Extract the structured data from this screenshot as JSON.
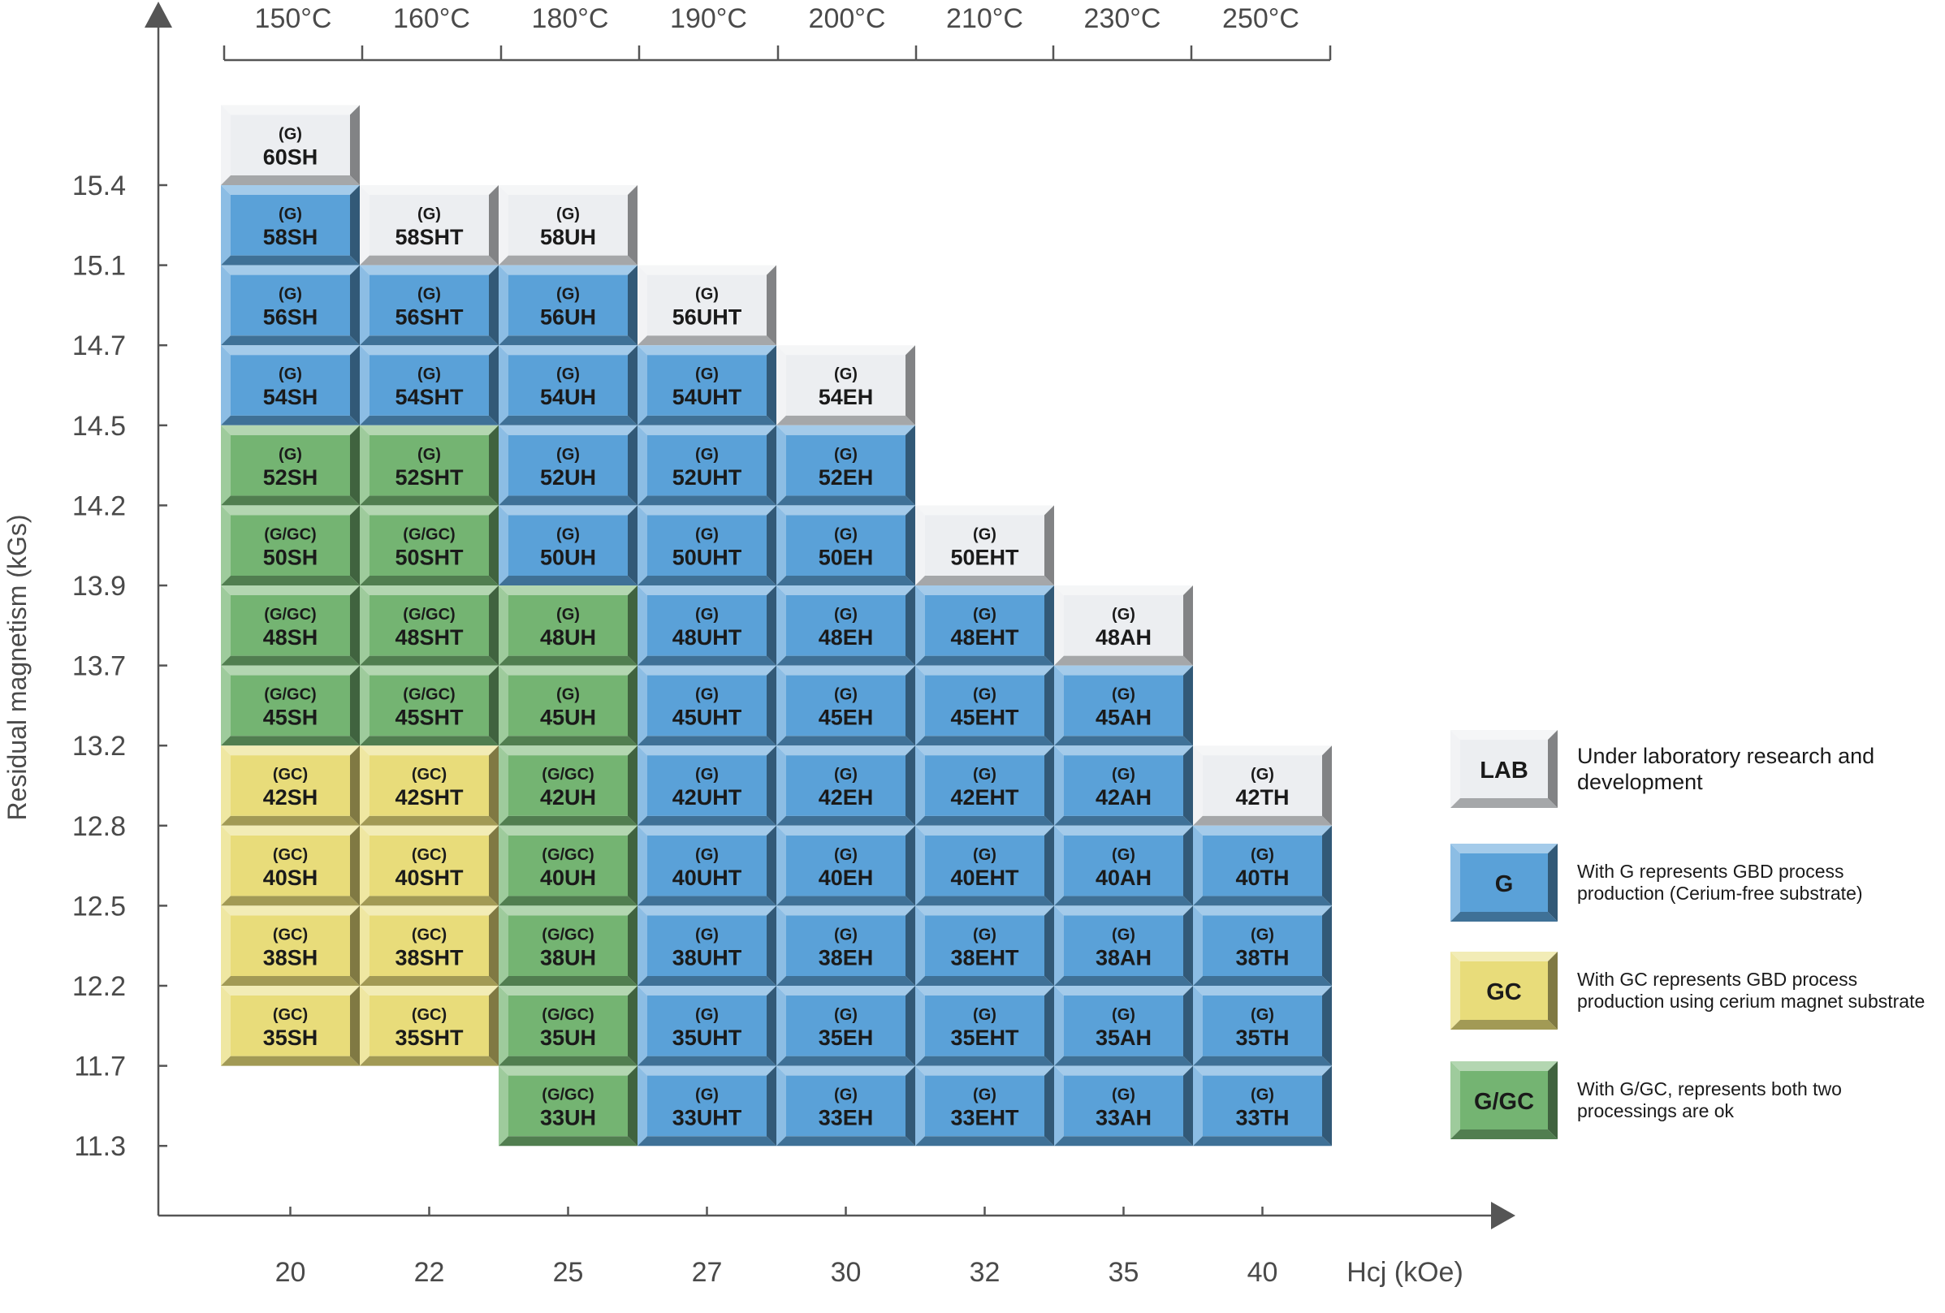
{
  "chart_data": {
    "type": "heatmap",
    "xlabel": "Hcj (kOe)",
    "ylabel": "Residual magnetism (kGs)",
    "x": [
      "20",
      "22",
      "25",
      "27",
      "30",
      "32",
      "35",
      "40"
    ],
    "temperatures": [
      "150°C",
      "160°C",
      "180°C",
      "190°C",
      "200°C",
      "210°C",
      "230°C",
      "250°C"
    ],
    "y": [
      "15.4",
      "15.1",
      "14.7",
      "14.5",
      "14.2",
      "13.9",
      "13.7",
      "13.2",
      "12.8",
      "12.5",
      "12.2",
      "11.7",
      "11.3"
    ],
    "colors": {
      "LAB": "#eceef1",
      "G": "#5aa1d8",
      "GC": "#e8dc7a",
      "G/GC": "#74b472"
    },
    "columns": [
      {
        "hcj": "20",
        "temp": "150°C",
        "cells": [
          {
            "row": 0,
            "proc": "(G)",
            "grade": "60SH",
            "type": "LAB"
          },
          {
            "row": 1,
            "proc": "(G)",
            "grade": "58SH",
            "type": "G"
          },
          {
            "row": 2,
            "proc": "(G)",
            "grade": "56SH",
            "type": "G"
          },
          {
            "row": 3,
            "proc": "(G)",
            "grade": "54SH",
            "type": "G"
          },
          {
            "row": 4,
            "proc": "(G)",
            "grade": "52SH",
            "type": "G/GC"
          },
          {
            "row": 5,
            "proc": "(G/GC)",
            "grade": "50SH",
            "type": "G/GC"
          },
          {
            "row": 6,
            "proc": "(G/GC)",
            "grade": "48SH",
            "type": "G/GC"
          },
          {
            "row": 7,
            "proc": "(G/GC)",
            "grade": "45SH",
            "type": "G/GC"
          },
          {
            "row": 8,
            "proc": "(GC)",
            "grade": "42SH",
            "type": "GC"
          },
          {
            "row": 9,
            "proc": "(GC)",
            "grade": "40SH",
            "type": "GC"
          },
          {
            "row": 10,
            "proc": "(GC)",
            "grade": "38SH",
            "type": "GC"
          },
          {
            "row": 11,
            "proc": "(GC)",
            "grade": "35SH",
            "type": "GC"
          }
        ]
      },
      {
        "hcj": "22",
        "temp": "160°C",
        "cells": [
          {
            "row": 1,
            "proc": "(G)",
            "grade": "58SHT",
            "type": "LAB"
          },
          {
            "row": 2,
            "proc": "(G)",
            "grade": "56SHT",
            "type": "G"
          },
          {
            "row": 3,
            "proc": "(G)",
            "grade": "54SHT",
            "type": "G"
          },
          {
            "row": 4,
            "proc": "(G)",
            "grade": "52SHT",
            "type": "G/GC"
          },
          {
            "row": 5,
            "proc": "(G/GC)",
            "grade": "50SHT",
            "type": "G/GC"
          },
          {
            "row": 6,
            "proc": "(G/GC)",
            "grade": "48SHT",
            "type": "G/GC"
          },
          {
            "row": 7,
            "proc": "(G/GC)",
            "grade": "45SHT",
            "type": "G/GC"
          },
          {
            "row": 8,
            "proc": "(GC)",
            "grade": "42SHT",
            "type": "GC"
          },
          {
            "row": 9,
            "proc": "(GC)",
            "grade": "40SHT",
            "type": "GC"
          },
          {
            "row": 10,
            "proc": "(GC)",
            "grade": "38SHT",
            "type": "GC"
          },
          {
            "row": 11,
            "proc": "(GC)",
            "grade": "35SHT",
            "type": "GC"
          }
        ]
      },
      {
        "hcj": "25",
        "temp": "180°C",
        "cells": [
          {
            "row": 1,
            "proc": "(G)",
            "grade": "58UH",
            "type": "LAB"
          },
          {
            "row": 2,
            "proc": "(G)",
            "grade": "56UH",
            "type": "G"
          },
          {
            "row": 3,
            "proc": "(G)",
            "grade": "54UH",
            "type": "G"
          },
          {
            "row": 4,
            "proc": "(G)",
            "grade": "52UH",
            "type": "G"
          },
          {
            "row": 5,
            "proc": "(G)",
            "grade": "50UH",
            "type": "G"
          },
          {
            "row": 6,
            "proc": "(G)",
            "grade": "48UH",
            "type": "G/GC"
          },
          {
            "row": 7,
            "proc": "(G)",
            "grade": "45UH",
            "type": "G/GC"
          },
          {
            "row": 8,
            "proc": "(G/GC)",
            "grade": "42UH",
            "type": "G/GC"
          },
          {
            "row": 9,
            "proc": "(G/GC)",
            "grade": "40UH",
            "type": "G/GC"
          },
          {
            "row": 10,
            "proc": "(G/GC)",
            "grade": "38UH",
            "type": "G/GC"
          },
          {
            "row": 11,
            "proc": "(G/GC)",
            "grade": "35UH",
            "type": "G/GC"
          },
          {
            "row": 12,
            "proc": "(G/GC)",
            "grade": "33UH",
            "type": "G/GC"
          }
        ]
      },
      {
        "hcj": "27",
        "temp": "190°C",
        "cells": [
          {
            "row": 2,
            "proc": "(G)",
            "grade": "56UHT",
            "type": "LAB"
          },
          {
            "row": 3,
            "proc": "(G)",
            "grade": "54UHT",
            "type": "G"
          },
          {
            "row": 4,
            "proc": "(G)",
            "grade": "52UHT",
            "type": "G"
          },
          {
            "row": 5,
            "proc": "(G)",
            "grade": "50UHT",
            "type": "G"
          },
          {
            "row": 6,
            "proc": "(G)",
            "grade": "48UHT",
            "type": "G"
          },
          {
            "row": 7,
            "proc": "(G)",
            "grade": "45UHT",
            "type": "G"
          },
          {
            "row": 8,
            "proc": "(G)",
            "grade": "42UHT",
            "type": "G"
          },
          {
            "row": 9,
            "proc": "(G)",
            "grade": "40UHT",
            "type": "G"
          },
          {
            "row": 10,
            "proc": "(G)",
            "grade": "38UHT",
            "type": "G"
          },
          {
            "row": 11,
            "proc": "(G)",
            "grade": "35UHT",
            "type": "G"
          },
          {
            "row": 12,
            "proc": "(G)",
            "grade": "33UHT",
            "type": "G"
          }
        ]
      },
      {
        "hcj": "30",
        "temp": "200°C",
        "cells": [
          {
            "row": 3,
            "proc": "(G)",
            "grade": "54EH",
            "type": "LAB"
          },
          {
            "row": 4,
            "proc": "(G)",
            "grade": "52EH",
            "type": "G"
          },
          {
            "row": 5,
            "proc": "(G)",
            "grade": "50EH",
            "type": "G"
          },
          {
            "row": 6,
            "proc": "(G)",
            "grade": "48EH",
            "type": "G"
          },
          {
            "row": 7,
            "proc": "(G)",
            "grade": "45EH",
            "type": "G"
          },
          {
            "row": 8,
            "proc": "(G)",
            "grade": "42EH",
            "type": "G"
          },
          {
            "row": 9,
            "proc": "(G)",
            "grade": "40EH",
            "type": "G"
          },
          {
            "row": 10,
            "proc": "(G)",
            "grade": "38EH",
            "type": "G"
          },
          {
            "row": 11,
            "proc": "(G)",
            "grade": "35EH",
            "type": "G"
          },
          {
            "row": 12,
            "proc": "(G)",
            "grade": "33EH",
            "type": "G"
          }
        ]
      },
      {
        "hcj": "32",
        "temp": "210°C",
        "cells": [
          {
            "row": 5,
            "proc": "(G)",
            "grade": "50EHT",
            "type": "LAB"
          },
          {
            "row": 6,
            "proc": "(G)",
            "grade": "48EHT",
            "type": "G"
          },
          {
            "row": 7,
            "proc": "(G)",
            "grade": "45EHT",
            "type": "G"
          },
          {
            "row": 8,
            "proc": "(G)",
            "grade": "42EHT",
            "type": "G"
          },
          {
            "row": 9,
            "proc": "(G)",
            "grade": "40EHT",
            "type": "G"
          },
          {
            "row": 10,
            "proc": "(G)",
            "grade": "38EHT",
            "type": "G"
          },
          {
            "row": 11,
            "proc": "(G)",
            "grade": "35EHT",
            "type": "G"
          },
          {
            "row": 12,
            "proc": "(G)",
            "grade": "33EHT",
            "type": "G"
          }
        ]
      },
      {
        "hcj": "35",
        "temp": "230°C",
        "cells": [
          {
            "row": 6,
            "proc": "(G)",
            "grade": "48AH",
            "type": "LAB"
          },
          {
            "row": 7,
            "proc": "(G)",
            "grade": "45AH",
            "type": "G"
          },
          {
            "row": 8,
            "proc": "(G)",
            "grade": "42AH",
            "type": "G"
          },
          {
            "row": 9,
            "proc": "(G)",
            "grade": "40AH",
            "type": "G"
          },
          {
            "row": 10,
            "proc": "(G)",
            "grade": "38AH",
            "type": "G"
          },
          {
            "row": 11,
            "proc": "(G)",
            "grade": "35AH",
            "type": "G"
          },
          {
            "row": 12,
            "proc": "(G)",
            "grade": "33AH",
            "type": "G"
          }
        ]
      },
      {
        "hcj": "40",
        "temp": "250°C",
        "cells": [
          {
            "row": 8,
            "proc": "(G)",
            "grade": "42TH",
            "type": "LAB"
          },
          {
            "row": 9,
            "proc": "(G)",
            "grade": "40TH",
            "type": "G"
          },
          {
            "row": 10,
            "proc": "(G)",
            "grade": "38TH",
            "type": "G"
          },
          {
            "row": 11,
            "proc": "(G)",
            "grade": "35TH",
            "type": "G"
          },
          {
            "row": 12,
            "proc": "(G)",
            "grade": "33TH",
            "type": "G"
          }
        ]
      }
    ],
    "legend": [
      {
        "type": "LAB",
        "label": "LAB",
        "text": [
          "Under laboratory research and",
          "development"
        ]
      },
      {
        "type": "G",
        "label": "G",
        "text": [
          "With G represents GBD process",
          "production (Cerium-free substrate)"
        ]
      },
      {
        "type": "GC",
        "label": "GC",
        "text": [
          "With GC represents GBD process",
          "production using cerium magnet substrate"
        ]
      },
      {
        "type": "G/GC",
        "label": "G/GC",
        "text": [
          "With G/GC, represents both two",
          "processings are ok"
        ]
      }
    ]
  }
}
